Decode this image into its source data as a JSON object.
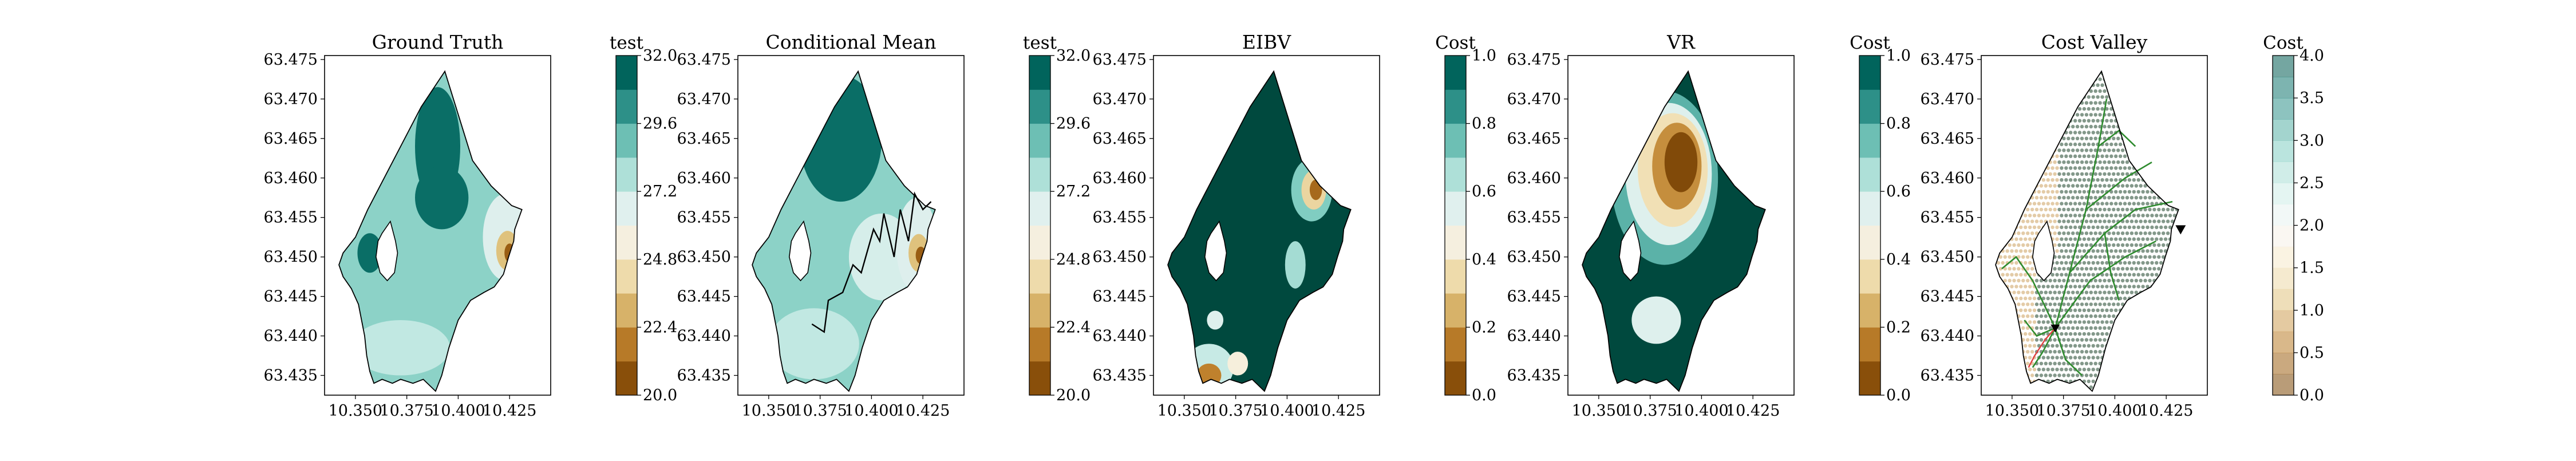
{
  "chart_data": [
    {
      "type": "contour",
      "title": "Ground Truth",
      "colorbar_title": "test",
      "colorbar_ticks": [
        "20.0",
        "22.4",
        "24.8",
        "27.2",
        "29.6",
        "32.0"
      ],
      "colorbar_range": [
        20.0,
        32.0
      ],
      "colormap": "BrBG",
      "xticks": [
        "10.350",
        "10.375",
        "10.400",
        "10.425"
      ],
      "yticks": [
        "63.435",
        "63.440",
        "63.445",
        "63.450",
        "63.455",
        "63.460",
        "63.465",
        "63.470",
        "63.475"
      ],
      "xlim": [
        10.335,
        10.445
      ],
      "ylim": [
        63.4325,
        63.4755
      ],
      "blobs": [
        {
          "x": 10.38,
          "y": 63.447,
          "rx": 0.03,
          "ry": 0.006,
          "value": 27.0
        },
        {
          "x": 10.388,
          "y": 63.461,
          "rx": 0.01,
          "ry": 0.008,
          "value": 31.0
        },
        {
          "x": 10.355,
          "y": 63.451,
          "rx": 0.006,
          "ry": 0.003,
          "value": 30.5
        },
        {
          "x": 10.424,
          "y": 63.451,
          "rx": 0.01,
          "ry": 0.004,
          "value": 22.0
        }
      ]
    },
    {
      "type": "contour",
      "title": "Conditional Mean",
      "colorbar_title": "test",
      "colorbar_ticks": [
        "20.0",
        "22.4",
        "24.8",
        "27.2",
        "29.6",
        "32.0"
      ],
      "colorbar_range": [
        20.0,
        32.0
      ],
      "colormap": "BrBG",
      "xticks": [
        "10.350",
        "10.375",
        "10.400",
        "10.425"
      ],
      "yticks": [
        "63.435",
        "63.440",
        "63.445",
        "63.450",
        "63.455",
        "63.460",
        "63.465",
        "63.470",
        "63.475"
      ],
      "xlim": [
        10.335,
        10.445
      ],
      "ylim": [
        63.4325,
        63.4755
      ],
      "path": [
        [
          10.371,
          63.4415
        ],
        [
          10.377,
          63.4405
        ],
        [
          10.379,
          63.4445
        ],
        [
          10.386,
          63.4455
        ],
        [
          10.391,
          63.449
        ],
        [
          10.395,
          63.448
        ],
        [
          10.401,
          63.4535
        ],
        [
          10.404,
          63.452
        ],
        [
          10.406,
          63.4555
        ],
        [
          10.411,
          63.45
        ],
        [
          10.414,
          63.456
        ],
        [
          10.418,
          63.452
        ],
        [
          10.421,
          63.458
        ],
        [
          10.425,
          63.456
        ],
        [
          10.429,
          63.457
        ]
      ]
    },
    {
      "type": "contour",
      "title": "EIBV",
      "colorbar_title": "Cost",
      "colorbar_ticks": [
        "0.0",
        "0.2",
        "0.4",
        "0.6",
        "0.8",
        "1.0"
      ],
      "colorbar_range": [
        0.0,
        1.0
      ],
      "colormap": "BrBG",
      "xticks": [
        "10.350",
        "10.375",
        "10.400",
        "10.425"
      ],
      "yticks": [
        "63.435",
        "63.440",
        "63.445",
        "63.450",
        "63.455",
        "63.460",
        "63.465",
        "63.470",
        "63.475"
      ],
      "xlim": [
        10.335,
        10.445
      ],
      "ylim": [
        63.4325,
        63.4755
      ]
    },
    {
      "type": "contour",
      "title": "VR",
      "colorbar_title": "Cost",
      "colorbar_ticks": [
        "0.0",
        "0.2",
        "0.4",
        "0.6",
        "0.8",
        "1.0"
      ],
      "colorbar_range": [
        0.0,
        1.0
      ],
      "colormap": "BrBG",
      "xticks": [
        "10.350",
        "10.375",
        "10.400",
        "10.425"
      ],
      "yticks": [
        "63.435",
        "63.440",
        "63.445",
        "63.450",
        "63.455",
        "63.460",
        "63.465",
        "63.470",
        "63.475"
      ],
      "xlim": [
        10.335,
        10.445
      ],
      "ylim": [
        63.4325,
        63.4755
      ]
    },
    {
      "type": "contour",
      "title": "Cost Valley",
      "colorbar_title": "Cost",
      "colorbar_ticks": [
        "0.0",
        "0.5",
        "1.0",
        "1.5",
        "2.0",
        "2.5",
        "3.0",
        "3.5",
        "4.0"
      ],
      "colorbar_range": [
        0.0,
        4.0
      ],
      "colormap": "BrBG",
      "xticks": [
        "10.350",
        "10.375",
        "10.400",
        "10.425"
      ],
      "yticks": [
        "63.435",
        "63.440",
        "63.445",
        "63.450",
        "63.455",
        "63.460",
        "63.465",
        "63.470",
        "63.475"
      ],
      "xlim": [
        10.335,
        10.445
      ],
      "ylim": [
        63.4325,
        63.4755
      ],
      "start": [
        10.371,
        63.441
      ],
      "target": [
        10.432,
        63.4535
      ],
      "colors": {
        "tree": "#2e8b2e",
        "valley_dots": "#5a7563",
        "path": "#e04040"
      }
    }
  ],
  "colors": {
    "brbg": [
      "#543005",
      "#8c510a",
      "#bf812d",
      "#dfc27d",
      "#f6e8c3",
      "#f5f5f5",
      "#c7eae5",
      "#80cdc1",
      "#35978f",
      "#01665e",
      "#003c30"
    ]
  }
}
